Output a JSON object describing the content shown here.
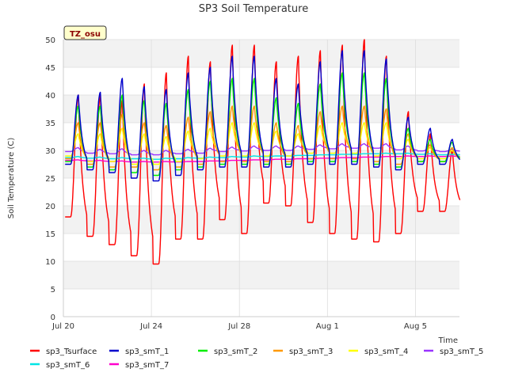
{
  "chart_data": {
    "type": "line",
    "title": "SP3 Soil Temperature",
    "xlabel": "Time",
    "ylabel": "Soil Temperature (C)",
    "badge": "TZ_osu",
    "x_range_days": [
      0,
      18
    ],
    "x_ticks": [
      {
        "day": 0,
        "label": "Jul 20"
      },
      {
        "day": 4,
        "label": "Jul 24"
      },
      {
        "day": 8,
        "label": "Jul 28"
      },
      {
        "day": 12,
        "label": "Aug 1"
      },
      {
        "day": 16,
        "label": "Aug 5"
      }
    ],
    "ylim": [
      0,
      50
    ],
    "y_ticks": [
      0,
      5,
      10,
      15,
      20,
      25,
      30,
      35,
      40,
      45,
      50
    ],
    "grid": true,
    "legend_position": "bottom",
    "series": [
      {
        "name": "sp3_Tsurface",
        "color": "#ff0000",
        "daily_max": [
          40,
          40,
          39,
          42,
          44,
          47,
          46,
          49,
          49,
          46,
          47,
          48,
          49,
          50,
          47,
          37,
          33,
          30
        ],
        "daily_min": [
          18,
          14.5,
          13,
          11,
          9.5,
          14,
          14,
          17.5,
          15,
          20.5,
          20,
          17,
          15,
          14,
          13.5,
          15,
          19,
          19
        ]
      },
      {
        "name": "sp3_smT_1",
        "color": "#0000cc",
        "daily_max": [
          40,
          40.5,
          43,
          41.5,
          41,
          44,
          45,
          47,
          47,
          43,
          42,
          46,
          48,
          48,
          46.5,
          36,
          34,
          32
        ],
        "daily_min": [
          27.5,
          26.5,
          26,
          25,
          24.5,
          25.5,
          26.5,
          27,
          27,
          27,
          27,
          27.5,
          27.5,
          27.5,
          27,
          26.5,
          27.5,
          27.5
        ]
      },
      {
        "name": "sp3_smT_2",
        "color": "#00ee00",
        "daily_max": [
          38,
          38,
          40,
          39,
          38.5,
          41,
          42.5,
          43,
          43,
          39.5,
          38.5,
          42,
          44,
          44,
          43,
          34,
          32,
          31.5
        ],
        "daily_min": [
          28,
          27,
          26.5,
          26,
          25.5,
          26.5,
          27,
          27.5,
          27.5,
          27.5,
          27.5,
          28,
          28,
          28,
          27.5,
          27,
          28,
          28
        ]
      },
      {
        "name": "sp3_smT_3",
        "color": "#ff9900",
        "daily_max": [
          35,
          35,
          36.5,
          35,
          34.5,
          36,
          37,
          38,
          38,
          35,
          34.5,
          37,
          38,
          38,
          37.5,
          33,
          31,
          30.5
        ],
        "daily_min": [
          28.5,
          27.5,
          27,
          27,
          26.5,
          27,
          27.5,
          28,
          28,
          28,
          28,
          28.5,
          28.5,
          28.5,
          28,
          27.5,
          28,
          28
        ]
      },
      {
        "name": "sp3_smT_4",
        "color": "#ffff00",
        "daily_max": [
          33,
          33,
          34,
          33,
          32.5,
          33.5,
          34,
          35,
          35,
          33.5,
          33,
          34.5,
          35,
          35,
          35,
          32,
          30.5,
          30
        ],
        "daily_min": [
          29,
          28,
          28,
          27.5,
          27.5,
          28,
          28.5,
          29,
          29,
          29,
          29,
          29.5,
          29.5,
          29.5,
          29,
          28.5,
          28.5,
          28.5
        ]
      },
      {
        "name": "sp3_smT_5",
        "color": "#9933ff",
        "daily_max": [
          30.5,
          30.2,
          30.3,
          30,
          30,
          30.2,
          30.4,
          30.6,
          30.8,
          30.8,
          30.8,
          31,
          31.2,
          31.2,
          31.2,
          30.8,
          30.5,
          30.2
        ],
        "daily_min": [
          29.8,
          29.5,
          29.4,
          29.2,
          29.2,
          29.4,
          29.5,
          29.8,
          29.9,
          30,
          30,
          30.2,
          30.3,
          30.4,
          30.4,
          30.1,
          29.9,
          29.8
        ]
      },
      {
        "name": "sp3_smT_6",
        "color": "#00e5e5",
        "daily_max": [
          28.9,
          28.8,
          28.7,
          28.6,
          28.6,
          28.7,
          28.8,
          28.9,
          29,
          29,
          29.1,
          29.2,
          29.3,
          29.4,
          29.5,
          29.5,
          29.4,
          29.3
        ],
        "daily_min": [
          28.7,
          28.6,
          28.5,
          28.5,
          28.4,
          28.5,
          28.6,
          28.7,
          28.8,
          28.9,
          29,
          29.1,
          29.2,
          29.3,
          29.4,
          29.4,
          29.3,
          29.2
        ]
      },
      {
        "name": "sp3_smT_7",
        "color": "#ff00cc",
        "daily_max": [
          28.3,
          28.2,
          28.1,
          28,
          28,
          28,
          28.1,
          28.2,
          28.3,
          28.4,
          28.5,
          28.6,
          28.7,
          28.8,
          28.9,
          29,
          29,
          29
        ],
        "daily_min": [
          28.2,
          28.1,
          28,
          27.9,
          27.9,
          27.9,
          28,
          28.1,
          28.2,
          28.3,
          28.4,
          28.5,
          28.6,
          28.7,
          28.8,
          28.9,
          28.9,
          28.9
        ]
      }
    ]
  }
}
